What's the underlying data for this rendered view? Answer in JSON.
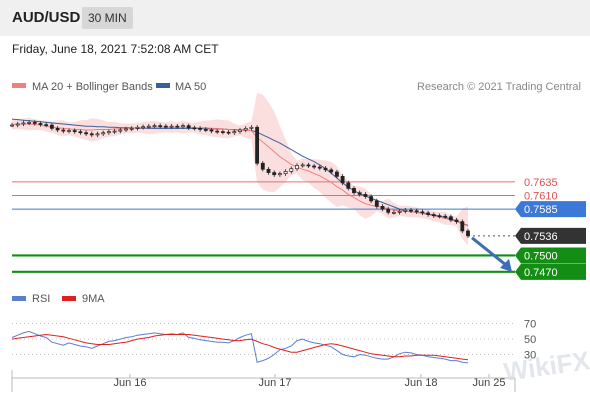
{
  "header": {
    "symbol": "AUD/USD",
    "interval": "30 MIN",
    "datetime": "Friday, June 18, 2021 7:52:08 AM CET"
  },
  "legend": {
    "ma20_label": "MA 20 + Bollinger Bands",
    "ma20_color": "#f08080",
    "ma50_label": "MA 50",
    "ma50_color": "#3a5fa0",
    "credit": "Research © 2021 Trading Central"
  },
  "rsi_legend": {
    "rsi_label": "RSI",
    "rsi_color": "#5a7fd0",
    "ma_label": "9MA",
    "ma_color": "#e02020"
  },
  "watermark": "WikiFX",
  "chart_data": [
    {
      "type": "line",
      "subtype": "candlestick",
      "ylim": [
        0.7455,
        0.7785
      ],
      "x_ticks": [
        "Jun 16",
        "Jun 17",
        "Jun 18",
        "Jun 25"
      ],
      "grid": false,
      "close": [
        0.7739,
        0.7741,
        0.7743,
        0.7744,
        0.7742,
        0.774,
        0.7739,
        0.7733,
        0.773,
        0.7728,
        0.7729,
        0.7727,
        0.7725,
        0.7723,
        0.7721,
        0.7723,
        0.7725,
        0.7727,
        0.7728,
        0.773,
        0.7732,
        0.7733,
        0.7735,
        0.7736,
        0.7737,
        0.7738,
        0.7737,
        0.7736,
        0.7737,
        0.7736,
        0.7738,
        0.7734,
        0.7733,
        0.7731,
        0.773,
        0.7728,
        0.7727,
        0.7726,
        0.7725,
        0.7727,
        0.773,
        0.7733,
        0.7735,
        0.7669,
        0.7658,
        0.7652,
        0.7648,
        0.765,
        0.7654,
        0.7659,
        0.7665,
        0.7666,
        0.7664,
        0.7662,
        0.766,
        0.7657,
        0.7653,
        0.7645,
        0.7633,
        0.7623,
        0.7615,
        0.7612,
        0.7608,
        0.76,
        0.759,
        0.7585,
        0.7579,
        0.7579,
        0.7581,
        0.7583,
        0.7582,
        0.758,
        0.7578,
        0.7575,
        0.7573,
        0.7572,
        0.7571,
        0.7565,
        0.7562,
        0.7545,
        0.7536
      ],
      "ma20": [
        0.774,
        0.7741,
        0.7741,
        0.7741,
        0.774,
        0.7739,
        0.7737,
        0.7735,
        0.7734,
        0.7733,
        0.7732,
        0.7731,
        0.7731,
        0.773,
        0.773,
        0.7731,
        0.7731,
        0.7731,
        0.7732,
        0.7732,
        0.7733,
        0.7733,
        0.7734,
        0.7734,
        0.7734,
        0.7735,
        0.7735,
        0.7735,
        0.7735,
        0.7735,
        0.7735,
        0.7735,
        0.7734,
        0.7734,
        0.7734,
        0.7733,
        0.7733,
        0.7732,
        0.7731,
        0.773,
        0.7729,
        0.7729,
        0.7729,
        0.7716,
        0.7708,
        0.7699,
        0.769,
        0.7681,
        0.7674,
        0.7667,
        0.7662,
        0.7658,
        0.7655,
        0.765,
        0.7646,
        0.764,
        0.7634,
        0.7626,
        0.762,
        0.7612,
        0.7606,
        0.76,
        0.7595,
        0.7592,
        0.759,
        0.7588,
        0.7586,
        0.7583,
        0.7582,
        0.7581,
        0.758,
        0.7579,
        0.7577,
        0.7575,
        0.7572,
        0.757,
        0.7568,
        0.7565,
        0.7562,
        0.7558,
        0.7554
      ],
      "ma50": [
        0.775,
        0.7749,
        0.7748,
        0.7747,
        0.7746,
        0.7745,
        0.7744,
        0.7743,
        0.7742,
        0.7741,
        0.774,
        0.7739,
        0.7738,
        0.7737,
        0.7737,
        0.7736,
        0.7736,
        0.7735,
        0.7735,
        0.7734,
        0.7734,
        0.7734,
        0.7733,
        0.7733,
        0.7733,
        0.7733,
        0.7733,
        0.7733,
        0.7733,
        0.7733,
        0.7733,
        0.7733,
        0.7733,
        0.7733,
        0.7732,
        0.7732,
        0.7732,
        0.7732,
        0.7731,
        0.7731,
        0.773,
        0.773,
        0.7729,
        0.7726,
        0.7721,
        0.7716,
        0.7711,
        0.7706,
        0.77,
        0.7694,
        0.7688,
        0.7682,
        0.7677,
        0.7672,
        0.7666,
        0.7659,
        0.7651,
        0.7642,
        0.7633,
        0.7625,
        0.7619,
        0.7613,
        0.7609,
        0.7605,
        0.7601,
        0.7597,
        0.7593,
        0.7589,
        0.7585,
        0.7582,
        0.758,
        0.7579,
        0.7578,
        0.7576,
        0.7574,
        0.7572,
        0.757,
        0.7567,
        0.7563,
        0.7559,
        0.7555
      ],
      "levels": [
        {
          "label": "0.7635",
          "value": 0.7635,
          "role": "resistance",
          "color": "#e07070"
        },
        {
          "label": "0.7610",
          "value": 0.761,
          "role": "resistance",
          "color": "#e07070"
        },
        {
          "label": "0.7585",
          "value": 0.7585,
          "role": "pivot",
          "color": "#3c78d8"
        },
        {
          "label": "0.7536",
          "value": 0.7536,
          "role": "last_price",
          "color": "#333333"
        },
        {
          "label": "0.7500",
          "value": 0.75,
          "role": "target",
          "color": "#138d13"
        },
        {
          "label": "0.7470",
          "value": 0.747,
          "role": "target",
          "color": "#138d13"
        }
      ]
    },
    {
      "type": "line",
      "title": "RSI",
      "ylim": [
        15,
        80
      ],
      "y_ticks": [
        "70",
        "50",
        "30"
      ],
      "series": [
        {
          "name": "RSI",
          "values": [
            52,
            55,
            58,
            60,
            57,
            54,
            52,
            46,
            44,
            42,
            45,
            43,
            41,
            40,
            38,
            41,
            44,
            47,
            48,
            50,
            52,
            53,
            55,
            56,
            57,
            58,
            57,
            56,
            57,
            56,
            58,
            52,
            51,
            49,
            48,
            47,
            46,
            46,
            45,
            48,
            52,
            55,
            57,
            20,
            22,
            25,
            30,
            36,
            38,
            41,
            48,
            50,
            47,
            45,
            44,
            42,
            40,
            35,
            30,
            28,
            27,
            30,
            29,
            27,
            25,
            24,
            24,
            27,
            31,
            33,
            32,
            30,
            29,
            27,
            26,
            25,
            24,
            22,
            22,
            20,
            19
          ]
        },
        {
          "name": "9MA",
          "values": [
            50,
            51,
            52,
            53,
            54,
            55,
            56,
            55,
            54,
            53,
            51,
            49,
            47,
            45,
            44,
            43,
            43,
            43,
            44,
            45,
            46,
            48,
            50,
            51,
            52,
            54,
            55,
            56,
            56,
            56,
            56,
            56,
            55,
            54,
            53,
            52,
            51,
            50,
            49,
            48,
            48,
            49,
            50,
            47,
            44,
            42,
            39,
            37,
            35,
            33,
            33,
            35,
            37,
            39,
            41,
            43,
            44,
            43,
            41,
            39,
            37,
            35,
            33,
            31,
            30,
            29,
            28,
            27,
            27,
            28,
            28,
            29,
            29,
            29,
            29,
            28,
            27,
            26,
            25,
            24,
            23
          ]
        }
      ]
    }
  ]
}
